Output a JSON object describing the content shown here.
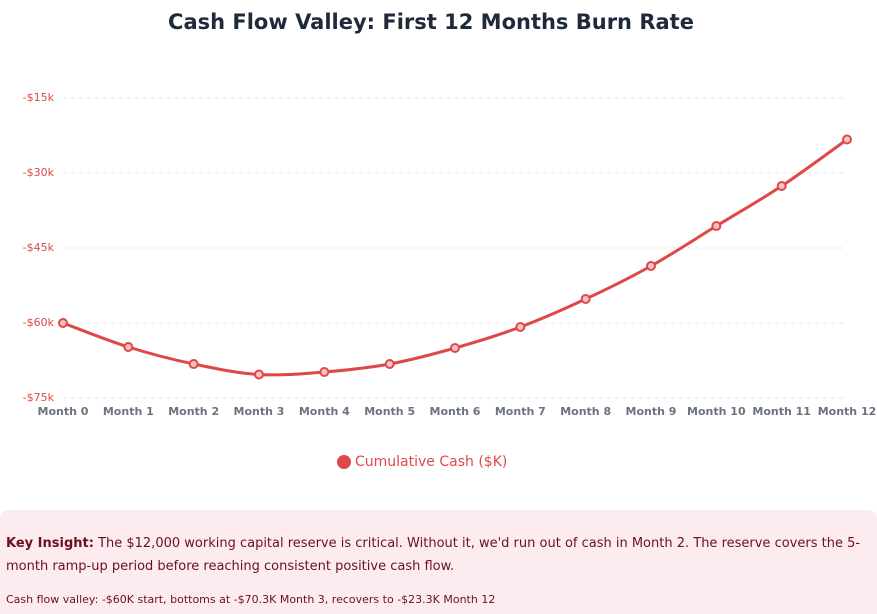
{
  "chart_data": {
    "type": "line",
    "title": "Cash Flow Valley: First 12 Months Burn Rate",
    "categories": [
      "Month 0",
      "Month 1",
      "Month 2",
      "Month 3",
      "Month 4",
      "Month 5",
      "Month 6",
      "Month 7",
      "Month 8",
      "Month 9",
      "Month 10",
      "Month 11",
      "Month 12"
    ],
    "series": [
      {
        "name": "Cumulative Cash ($K)",
        "color": "#e04848",
        "values": [
          -60,
          -64.8,
          -68.2,
          -70.3,
          -69.8,
          -68.2,
          -65,
          -60.8,
          -55.2,
          -48.6,
          -40.6,
          -32.6,
          -23.3
        ]
      }
    ],
    "ylim": [
      -75,
      -8
    ],
    "yticks": [
      {
        "value": -75,
        "label": "-$75k"
      },
      {
        "value": -60,
        "label": "-$60k"
      },
      {
        "value": -45,
        "label": "-$45k"
      },
      {
        "value": -30,
        "label": "-$30k"
      },
      {
        "value": -15,
        "label": "-$15k"
      }
    ],
    "grid": true
  },
  "insight": {
    "label": "Key Insight:",
    "text": "The $12,000 working capital reserve is critical. Without it, we'd run out of cash in Month 2. The reserve covers the 5-month ramp-up period before reaching consistent positive cash flow.",
    "note": "Cash flow valley: -$60K start, bottoms at -$70.3K Month 3, recovers to -$23.3K Month 12"
  }
}
